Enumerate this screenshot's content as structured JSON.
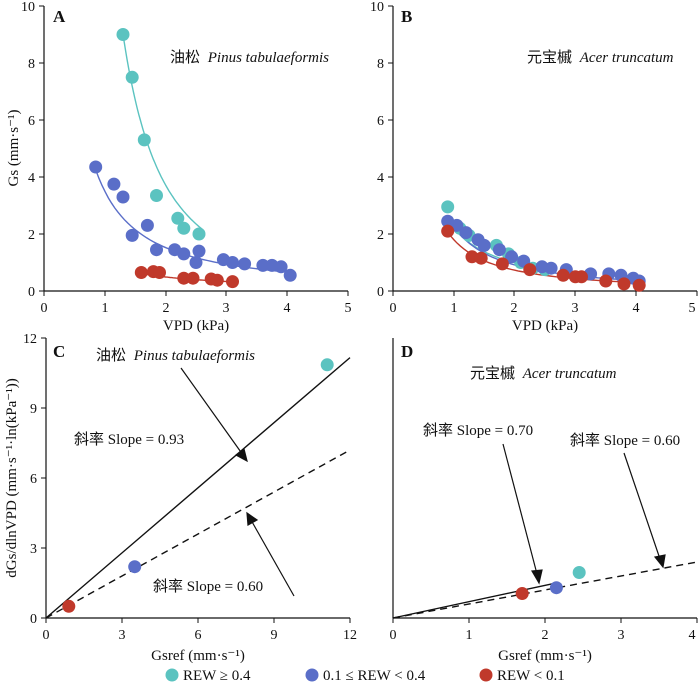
{
  "colors": {
    "high": "#5bc3c0",
    "mid": "#5a6ec8",
    "low": "#c0392b",
    "axis": "#111111"
  },
  "legend": [
    {
      "key": "high",
      "label": "REW ≥ 0.4"
    },
    {
      "key": "mid",
      "label": "0.1 ≤ REW < 0.4"
    },
    {
      "key": "low",
      "label": "REW < 0.1"
    }
  ],
  "chart_data": [
    {
      "panel": "A",
      "type": "scatter",
      "species_cn": "油松",
      "species_latin": "Pinus tabulaeformis",
      "xlabel": "VPD (kPa)",
      "ylabel": "Gs (mm·s⁻¹)",
      "xlim": [
        0,
        5
      ],
      "ylim": [
        0,
        10
      ],
      "xticks": [
        0,
        1,
        2,
        3,
        4,
        5
      ],
      "yticks": [
        0,
        2,
        4,
        6,
        8,
        10
      ],
      "series": [
        {
          "key": "high",
          "points": [
            [
              1.3,
              9.0
            ],
            [
              1.45,
              7.5
            ],
            [
              1.65,
              5.3
            ],
            [
              1.85,
              3.35
            ],
            [
              2.2,
              2.55
            ],
            [
              2.3,
              2.2
            ],
            [
              2.55,
              2.0
            ]
          ],
          "fit": {
            "a": 15.4,
            "b": -2.05,
            "xmin": 1.3,
            "xmax": 2.6
          }
        },
        {
          "key": "mid",
          "points": [
            [
              0.85,
              4.35
            ],
            [
              1.15,
              3.75
            ],
            [
              1.3,
              3.3
            ],
            [
              1.45,
              1.95
            ],
            [
              1.7,
              2.3
            ],
            [
              1.85,
              1.45
            ],
            [
              2.15,
              1.45
            ],
            [
              2.3,
              1.3
            ],
            [
              2.55,
              1.4
            ],
            [
              2.5,
              1.0
            ],
            [
              2.95,
              1.1
            ],
            [
              3.1,
              1.0
            ],
            [
              3.3,
              0.95
            ],
            [
              3.6,
              0.9
            ],
            [
              3.75,
              0.9
            ],
            [
              3.9,
              0.85
            ],
            [
              4.05,
              0.55
            ]
          ],
          "fit": {
            "a": 3.5,
            "b": -1.2,
            "xmin": 0.85,
            "xmax": 4.0
          }
        },
        {
          "key": "low",
          "points": [
            [
              1.6,
              0.65
            ],
            [
              1.8,
              0.68
            ],
            [
              1.9,
              0.65
            ],
            [
              2.3,
              0.45
            ],
            [
              2.45,
              0.45
            ],
            [
              2.75,
              0.42
            ],
            [
              2.85,
              0.38
            ],
            [
              3.1,
              0.33
            ]
          ],
          "fit": {
            "a": 0.95,
            "b": -0.95,
            "xmin": 1.6,
            "xmax": 3.1
          }
        }
      ]
    },
    {
      "panel": "B",
      "type": "scatter",
      "species_cn": "元宝槭",
      "species_latin": "Acer truncatum",
      "xlabel": "VPD (kPa)",
      "ylabel": "",
      "xlim": [
        0,
        5
      ],
      "ylim": [
        0,
        10
      ],
      "xticks": [
        0,
        1,
        2,
        3,
        4,
        5
      ],
      "yticks": [
        0,
        2,
        4,
        6,
        8,
        10
      ],
      "series": [
        {
          "key": "high",
          "points": [
            [
              0.9,
              2.95
            ],
            [
              1.1,
              2.2
            ],
            [
              1.25,
              1.95
            ],
            [
              1.7,
              1.6
            ],
            [
              1.9,
              1.3
            ],
            [
              2.1,
              1.0
            ],
            [
              2.3,
              0.8
            ],
            [
              2.5,
              0.75
            ]
          ],
          "fit": {
            "a": 2.2,
            "b": -1.15,
            "xmin": 0.9,
            "xmax": 2.6
          }
        },
        {
          "key": "mid",
          "points": [
            [
              0.9,
              2.45
            ],
            [
              1.05,
              2.3
            ],
            [
              1.2,
              2.05
            ],
            [
              1.4,
              1.8
            ],
            [
              1.5,
              1.6
            ],
            [
              1.75,
              1.45
            ],
            [
              1.95,
              1.2
            ],
            [
              2.15,
              1.05
            ],
            [
              2.45,
              0.85
            ],
            [
              2.6,
              0.8
            ],
            [
              2.85,
              0.75
            ],
            [
              3.25,
              0.6
            ],
            [
              3.55,
              0.6
            ],
            [
              3.75,
              0.55
            ],
            [
              3.95,
              0.45
            ],
            [
              4.05,
              0.35
            ]
          ],
          "fit": {
            "a": 2.25,
            "b": -1.3,
            "xmin": 0.9,
            "xmax": 4.05
          }
        },
        {
          "key": "low",
          "points": [
            [
              0.9,
              2.1
            ],
            [
              1.3,
              1.2
            ],
            [
              1.45,
              1.15
            ],
            [
              1.8,
              0.95
            ],
            [
              2.25,
              0.75
            ],
            [
              2.8,
              0.55
            ],
            [
              3.0,
              0.5
            ],
            [
              3.1,
              0.5
            ],
            [
              3.5,
              0.35
            ],
            [
              3.8,
              0.25
            ],
            [
              4.05,
              0.2
            ]
          ],
          "fit": {
            "a": 1.8,
            "b": -1.3,
            "xmin": 0.9,
            "xmax": 4.05
          }
        }
      ]
    },
    {
      "panel": "C",
      "type": "scatter",
      "species_cn": "油松",
      "species_latin": "Pinus tabulaeformis",
      "xlabel": "Gsref (mm·s⁻¹)",
      "ylabel": "dGs/dlnVPD (mm·s⁻¹·ln(kPa⁻¹))",
      "xlim": [
        0,
        12
      ],
      "ylim": [
        0,
        12
      ],
      "xticks": [
        0,
        3,
        6,
        9,
        12
      ],
      "yticks": [
        0,
        3,
        6,
        9,
        12
      ],
      "points": [
        {
          "key": "low",
          "x": 0.9,
          "y": 0.5
        },
        {
          "key": "mid",
          "x": 3.5,
          "y": 2.2
        },
        {
          "key": "high",
          "x": 11.1,
          "y": 10.85
        }
      ],
      "lines": [
        {
          "slope": 0.93,
          "style": "solid",
          "label": "斜率 Slope = 0.93"
        },
        {
          "slope": 0.6,
          "style": "dashed",
          "label": "斜率 Slope = 0.60"
        }
      ]
    },
    {
      "panel": "D",
      "type": "scatter",
      "species_cn": "元宝槭",
      "species_latin": "Acer truncatum",
      "xlabel": "Gsref (mm·s⁻¹)",
      "ylabel": "",
      "xlim": [
        0,
        4
      ],
      "ylim": [
        0,
        12
      ],
      "xticks": [
        0,
        1,
        2,
        3,
        4
      ],
      "yticks": [
        0,
        3,
        6,
        9,
        12
      ],
      "points": [
        {
          "key": "low",
          "x": 1.7,
          "y": 1.05
        },
        {
          "key": "mid",
          "x": 2.15,
          "y": 1.3
        },
        {
          "key": "high",
          "x": 2.45,
          "y": 1.95
        }
      ],
      "lines": [
        {
          "slope": 0.7,
          "style": "solid",
          "xmax": 2.15,
          "label": "斜率 Slope = 0.70"
        },
        {
          "slope": 0.6,
          "style": "dashed",
          "label": "斜率 Slope = 0.60"
        }
      ]
    }
  ]
}
